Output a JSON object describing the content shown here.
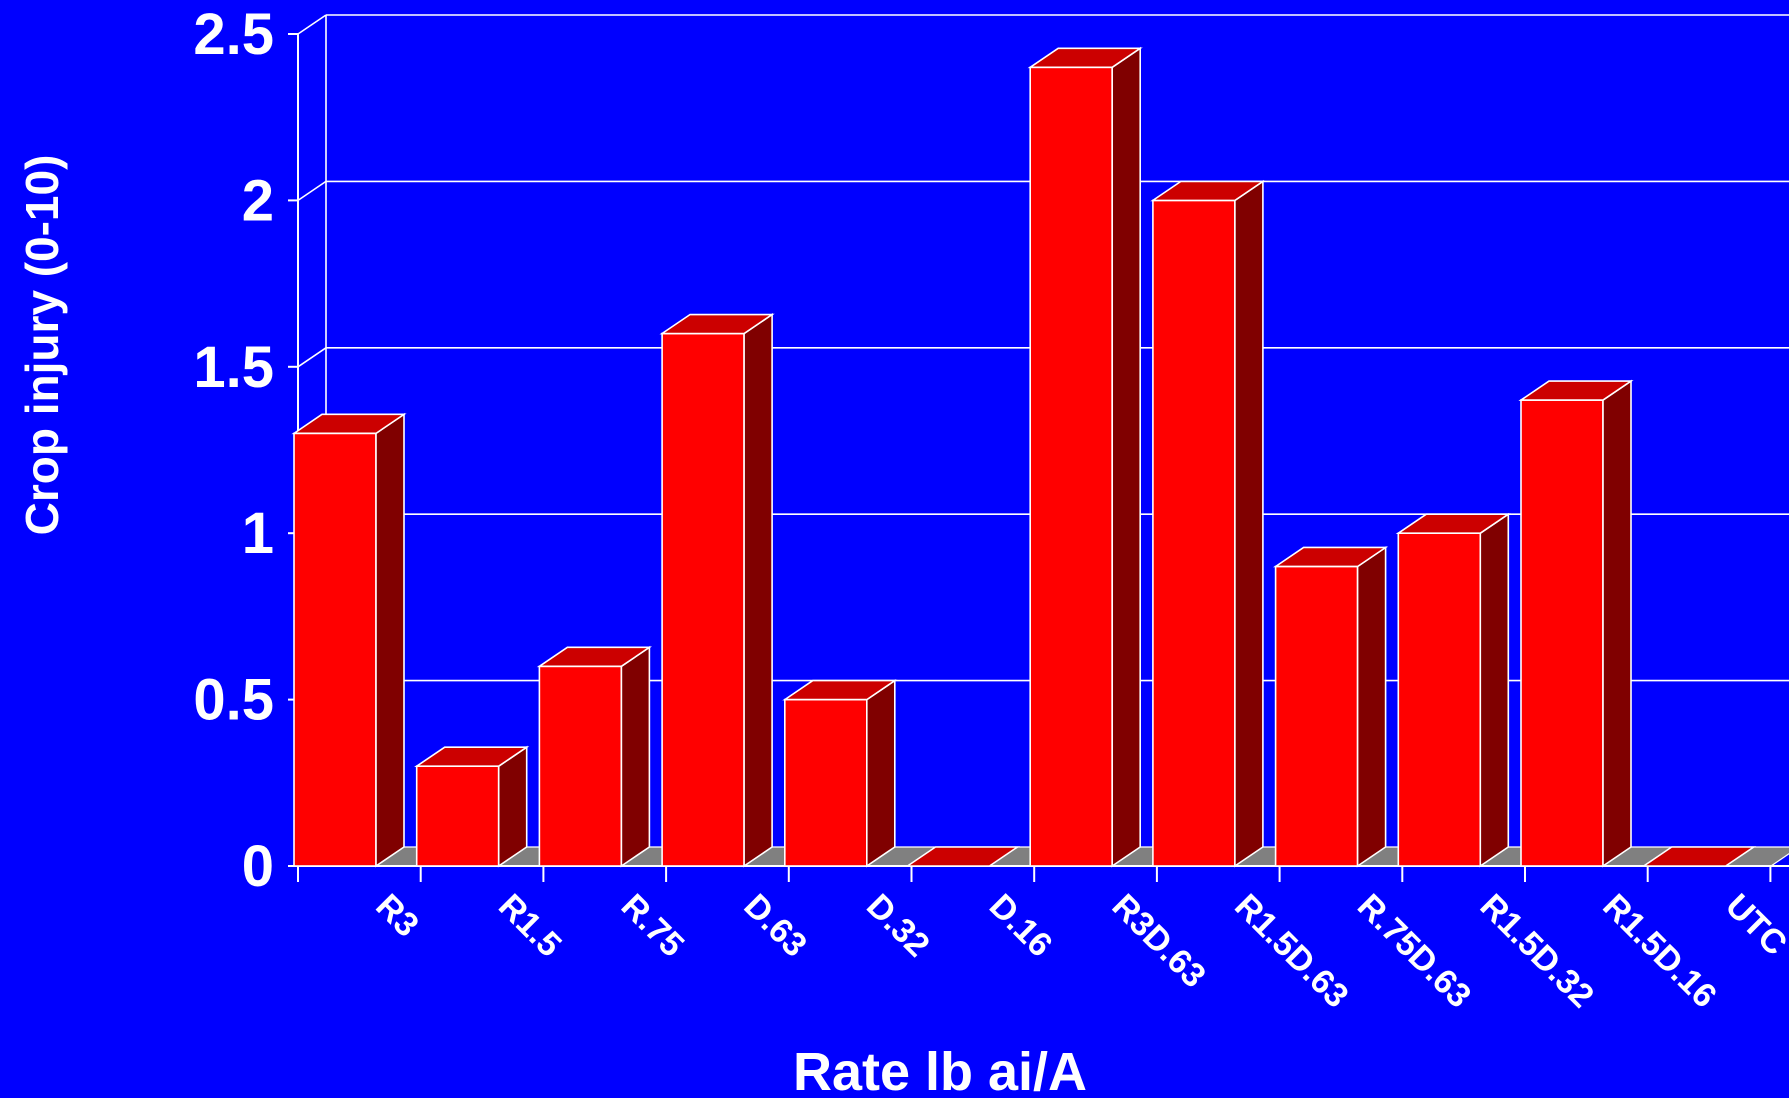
{
  "chart_data": {
    "type": "bar",
    "title": "",
    "xlabel": "Rate lb ai/A",
    "ylabel": "Crop injury (0-10)",
    "categories": [
      "R3",
      "R1.5",
      "R.75",
      "D.63",
      "D.32",
      "D.16",
      "R3D.63",
      "R1.5D.63",
      "R.75D.63",
      "R1.5D.32",
      "R1.5D.16",
      "UTC"
    ],
    "values": [
      1.3,
      0.3,
      0.6,
      1.6,
      0.5,
      0,
      2.4,
      2.0,
      0.9,
      1.0,
      1.4,
      0
    ],
    "ylim": [
      0,
      2.5
    ],
    "yticks": [
      "0",
      "0.5",
      "1",
      "1.5",
      "2",
      "2.5"
    ],
    "ytick_values": [
      0,
      0.5,
      1,
      1.5,
      2,
      2.5
    ],
    "grid": true,
    "style": "3d-bar",
    "colors": {
      "background": "#0000ff",
      "bar_front": "#ff0000",
      "bar_top": "#cc0000",
      "bar_side": "#800000",
      "floor": "#808080",
      "grid": "#ffffff",
      "text": "#ffffff"
    }
  }
}
